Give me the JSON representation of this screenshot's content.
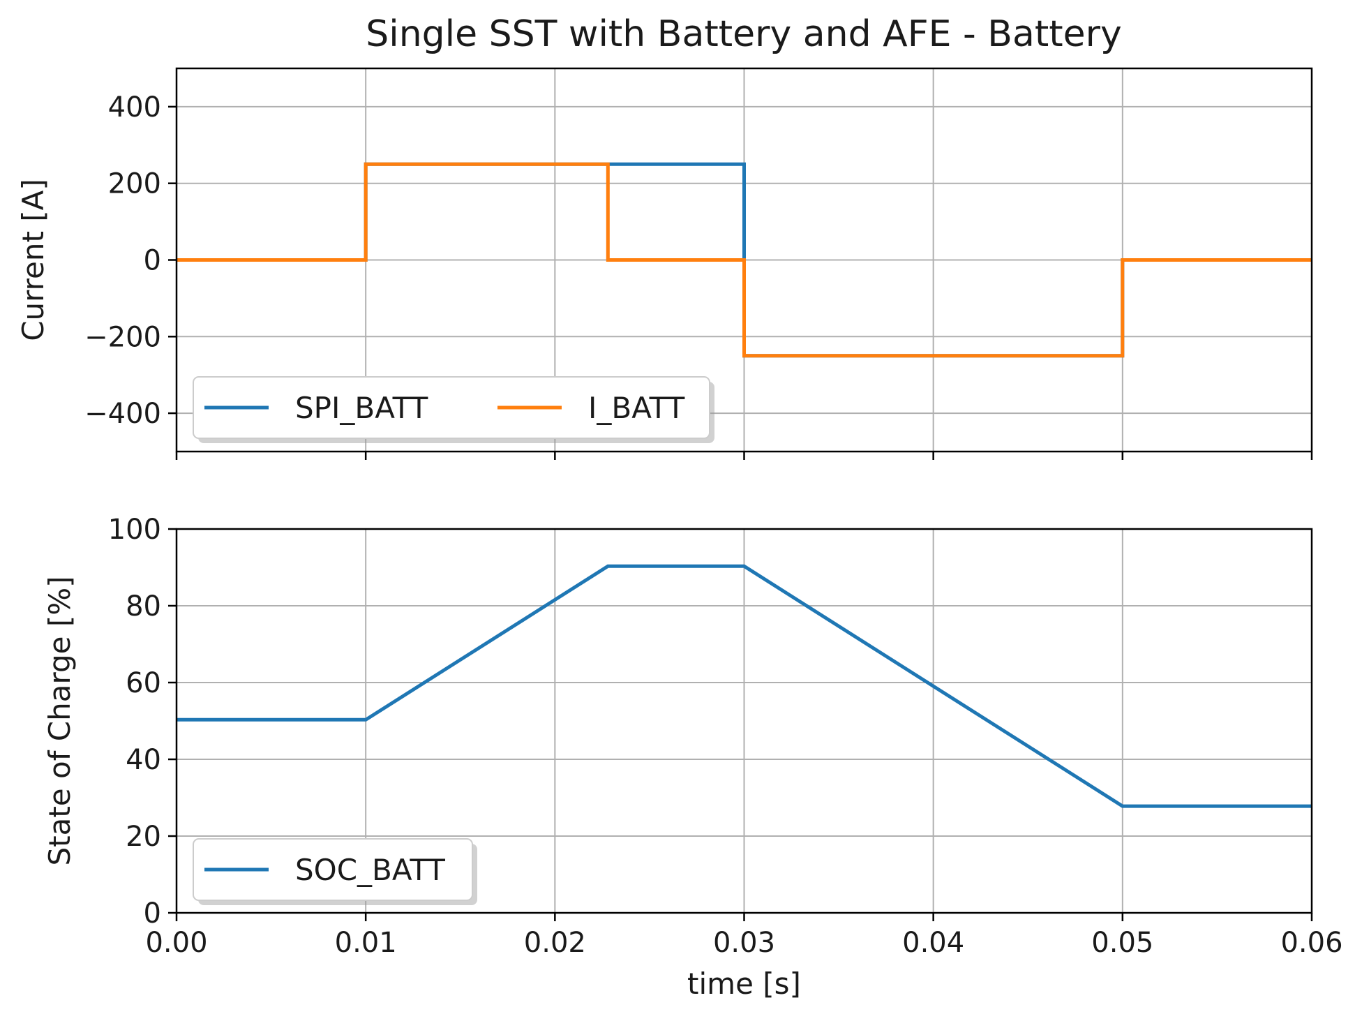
{
  "figure": {
    "title": "Single SST with Battery and AFE - Battery"
  },
  "colors": {
    "series_blue": "#1f77b4",
    "series_orange": "#ff7f0e",
    "grid": "#b0b0b0",
    "axes": "#000000",
    "background": "#ffffff"
  },
  "chart_data": [
    {
      "type": "line",
      "title": "Single SST with Battery and AFE - Battery",
      "xlabel": "",
      "ylabel": "Current [A]",
      "xlim": [
        0,
        0.06
      ],
      "ylim": [
        -500,
        500
      ],
      "x_ticks": [
        0,
        0.01,
        0.02,
        0.03,
        0.04,
        0.05,
        0.06
      ],
      "y_ticks": [
        -400,
        -200,
        0,
        200,
        400
      ],
      "y_tick_labels": [
        "−400",
        "−200",
        "0",
        "200",
        "400"
      ],
      "grid": true,
      "legend": "lower-left",
      "legend_columns": 2,
      "series": [
        {
          "name": "SPI_BATT",
          "color": "#1f77b4",
          "x": [
            0,
            0.01,
            0.01,
            0.03,
            0.03,
            0.05,
            0.05,
            0.06
          ],
          "y": [
            0,
            0,
            250,
            250,
            -250,
            -250,
            0,
            0
          ]
        },
        {
          "name": "I_BATT",
          "color": "#ff7f0e",
          "x": [
            0,
            0.01,
            0.01,
            0.0228,
            0.0228,
            0.03,
            0.03,
            0.05,
            0.05,
            0.06
          ],
          "y": [
            0,
            0,
            250,
            250,
            0,
            0,
            -250,
            -250,
            0,
            0
          ]
        }
      ]
    },
    {
      "type": "line",
      "title": "",
      "xlabel": "time [s]",
      "ylabel": "State of Charge [%]",
      "xlim": [
        0,
        0.06
      ],
      "ylim": [
        0,
        100
      ],
      "x_ticks": [
        0,
        0.01,
        0.02,
        0.03,
        0.04,
        0.05,
        0.06
      ],
      "x_tick_labels": [
        "0.00",
        "0.01",
        "0.02",
        "0.03",
        "0.04",
        "0.05",
        "0.06"
      ],
      "y_ticks": [
        0,
        20,
        40,
        60,
        80,
        100
      ],
      "y_tick_labels": [
        "0",
        "20",
        "40",
        "60",
        "80",
        "100"
      ],
      "grid": true,
      "legend": "lower-left",
      "legend_columns": 1,
      "series": [
        {
          "name": "SOC_BATT",
          "color": "#1f77b4",
          "x": [
            0,
            0.01,
            0.0228,
            0.03,
            0.05,
            0.06
          ],
          "y": [
            50.3,
            50.3,
            90.3,
            90.3,
            27.8,
            27.8
          ]
        }
      ]
    }
  ]
}
